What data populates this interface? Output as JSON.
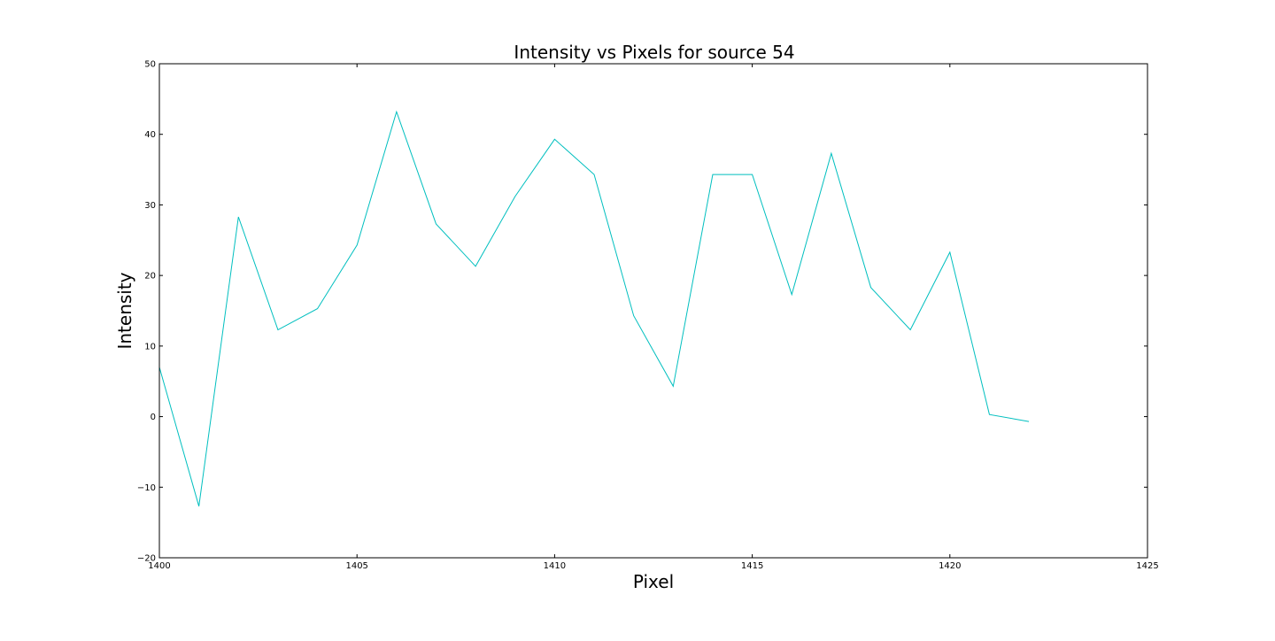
{
  "chart_data": {
    "type": "line",
    "title": "Intensity vs Pixels for source 54",
    "xlabel": "Pixel",
    "ylabel": "Intensity",
    "xlim": [
      1400,
      1425
    ],
    "ylim": [
      -20,
      50
    ],
    "xticks": [
      1400,
      1405,
      1410,
      1415,
      1420,
      1425
    ],
    "yticks": [
      -20,
      -10,
      0,
      10,
      20,
      30,
      40,
      50
    ],
    "xtick_labels": [
      "1400",
      "1405",
      "1410",
      "1415",
      "1420",
      "1425"
    ],
    "ytick_labels": [
      "−20",
      "−10",
      "0",
      "10",
      "20",
      "30",
      "40",
      "50"
    ],
    "grid": false,
    "series": [
      {
        "color": "#00bfbf",
        "x": [
          1400,
          1401,
          1402,
          1403,
          1404,
          1405,
          1406,
          1407,
          1408,
          1409,
          1410,
          1411,
          1412,
          1413,
          1414,
          1415,
          1416,
          1417,
          1418,
          1419,
          1420,
          1421,
          1422
        ],
        "y": [
          7,
          -12.7,
          28.3,
          12.3,
          15.3,
          24.3,
          43.2,
          27.3,
          21.3,
          31.2,
          39.3,
          34.3,
          14.3,
          4.3,
          34.3,
          34.3,
          17.3,
          37.3,
          18.3,
          12.3,
          23.3,
          0.3,
          -0.7
        ]
      }
    ]
  }
}
